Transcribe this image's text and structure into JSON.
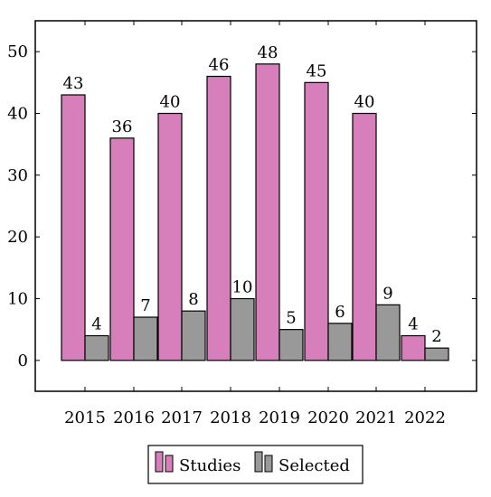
{
  "chart_data": {
    "type": "bar",
    "title": "",
    "xlabel": "",
    "ylabel": "",
    "categories": [
      "2015",
      "2016",
      "2017",
      "2018",
      "2019",
      "2020",
      "2021",
      "2022"
    ],
    "series": [
      {
        "name": "Studies",
        "color": "#d67fbb",
        "values": [
          43,
          36,
          40,
          46,
          48,
          45,
          40,
          4
        ]
      },
      {
        "name": "Selected",
        "color": "#999999",
        "values": [
          4,
          7,
          8,
          10,
          5,
          6,
          9,
          2
        ]
      }
    ],
    "ylim": [
      -5,
      55
    ],
    "yticks": [
      0,
      10,
      20,
      30,
      40,
      50
    ],
    "grid": false,
    "legend": "bottom-center"
  }
}
